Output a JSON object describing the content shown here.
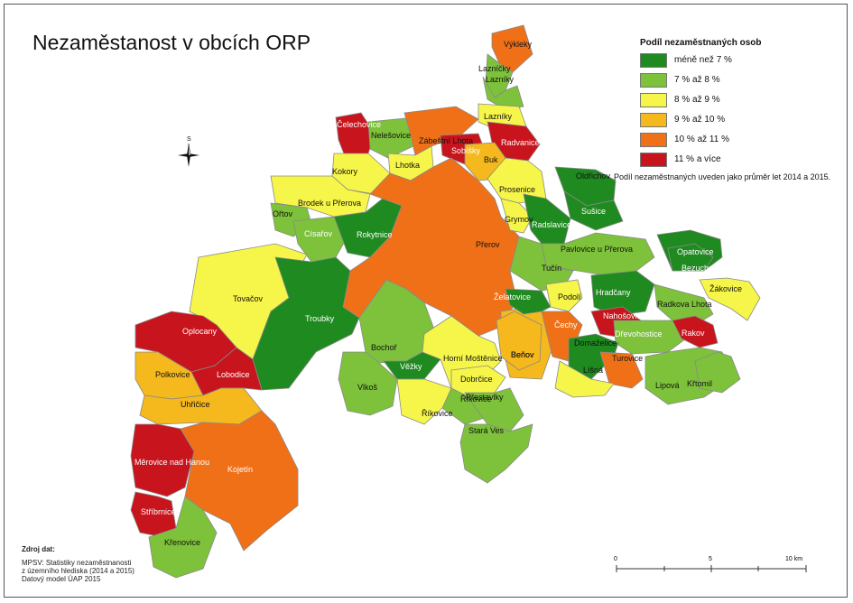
{
  "title": "Nezaměstanost v obcích ORP",
  "legend": {
    "title": "Podíl nezaměstnaných osob",
    "items": [
      {
        "label": "méně než 7 %",
        "color": "#1f8a1f"
      },
      {
        "label": "7 % až 8 %",
        "color": "#7dc23a"
      },
      {
        "label": "8 % až 9 %",
        "color": "#f6f64a"
      },
      {
        "label": "9 % až 10 %",
        "color": "#f5b81d"
      },
      {
        "label": "10 % až 11 %",
        "color": "#f07018"
      },
      {
        "label": "11 % a více",
        "color": "#c8141c"
      }
    ],
    "note": "Podíl nezaměstnaných uveden jako průměr let 2014 a 2015."
  },
  "compass": {
    "label": "S",
    "icon": "north-arrow-icon"
  },
  "source": {
    "heading": "Zdroj dat:",
    "lines": [
      "MPSV: Statistiky nezaměstnanosti",
      "z územního hlediska (2014 a 2015)",
      "Datový model ÚAP 2015"
    ]
  },
  "scale": {
    "zero": "0",
    "mid": "5",
    "end": "10 km"
  },
  "municipalities": [
    {
      "name": "Výkleky",
      "category": 4
    },
    {
      "name": "Lazníčky",
      "category": 1
    },
    {
      "name": "Lazníky",
      "category": 1
    },
    {
      "name": "Lazníky",
      "category": 2
    },
    {
      "name": "Čelechovice",
      "category": 5
    },
    {
      "name": "Nelešovice",
      "category": 1
    },
    {
      "name": "Zábeštní Lhota",
      "category": 4
    },
    {
      "name": "Sobíšky",
      "category": 5
    },
    {
      "name": "Radvanice",
      "category": 5
    },
    {
      "name": "Buk",
      "category": 3
    },
    {
      "name": "Lhotka",
      "category": 2
    },
    {
      "name": "Kokory",
      "category": 2
    },
    {
      "name": "Brodek u Přerova",
      "category": 2
    },
    {
      "name": "Prosenice",
      "category": 2
    },
    {
      "name": "Oldřichov",
      "category": 0
    },
    {
      "name": "Sušice",
      "category": 0
    },
    {
      "name": "Ořtov",
      "category": 1
    },
    {
      "name": "Císařov",
      "category": 1
    },
    {
      "name": "Rokytnice",
      "category": 0
    },
    {
      "name": "Přerov",
      "category": 4
    },
    {
      "name": "Grymov",
      "category": 2
    },
    {
      "name": "Radslavice",
      "category": 0
    },
    {
      "name": "Opatovice",
      "category": 0
    },
    {
      "name": "Pavlovice u Přerova",
      "category": 1
    },
    {
      "name": "Beňov",
      "category": 3
    },
    {
      "name": "Říkovice",
      "category": 1
    },
    {
      "name": "Bezuchov",
      "category": 0
    },
    {
      "name": "Tučín",
      "category": 1
    },
    {
      "name": "Hradčany",
      "category": 0
    },
    {
      "name": "Žákovice",
      "category": 2
    },
    {
      "name": "Tovačov",
      "category": 2
    },
    {
      "name": "Troubky",
      "category": 0
    },
    {
      "name": "Želatovice",
      "category": 0
    },
    {
      "name": "Podolí",
      "category": 2
    },
    {
      "name": "Radkova Lhota",
      "category": 1
    },
    {
      "name": "Čechy",
      "category": 4
    },
    {
      "name": "Nahošovice",
      "category": 5
    },
    {
      "name": "Dřevohostice",
      "category": 1
    },
    {
      "name": "Rakov",
      "category": 5
    },
    {
      "name": "Oplocany",
      "category": 5
    },
    {
      "name": "Bochoř",
      "category": 1
    },
    {
      "name": "Domaželice",
      "category": 0
    },
    {
      "name": "Turovice",
      "category": 4
    },
    {
      "name": "Věžky",
      "category": 0
    },
    {
      "name": "Horní Moštěnice",
      "category": 2
    },
    {
      "name": "Beňov",
      "category": 3
    },
    {
      "name": "Polkovice",
      "category": 3
    },
    {
      "name": "Lobodice",
      "category": 5
    },
    {
      "name": "Líšná",
      "category": 2
    },
    {
      "name": "Lipová",
      "category": 1
    },
    {
      "name": "Křtomil",
      "category": 1
    },
    {
      "name": "Vlkoš",
      "category": 1
    },
    {
      "name": "Dobrčice",
      "category": 2
    },
    {
      "name": "Přestavlky",
      "category": 1
    },
    {
      "name": "Uhřičice",
      "category": 3
    },
    {
      "name": "Říkovice",
      "category": 2
    },
    {
      "name": "Stará Ves",
      "category": 1
    },
    {
      "name": "Měrovice nad Hanou",
      "category": 5
    },
    {
      "name": "Kojetín",
      "category": 4
    },
    {
      "name": "Stříbrnice",
      "category": 5
    },
    {
      "name": "Křenovice",
      "category": 1
    }
  ]
}
